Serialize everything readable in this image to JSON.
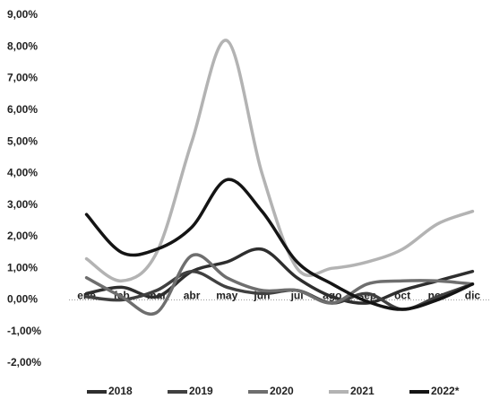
{
  "chart_data": {
    "type": "line",
    "categories": [
      "ene",
      "feb",
      "mar",
      "abr",
      "may",
      "jun",
      "jul",
      "ago",
      "sep",
      "oct",
      "nov",
      "dic"
    ],
    "series": [
      {
        "name": "2018",
        "color": "#2e2e2e",
        "values": [
          0.2,
          0.4,
          0.1,
          0.9,
          1.2,
          1.6,
          0.7,
          0.1,
          -0.1,
          0.3,
          0.6,
          0.9
        ]
      },
      {
        "name": "2019",
        "color": "#404040",
        "values": [
          0.1,
          0.0,
          0.3,
          0.9,
          0.4,
          0.2,
          0.3,
          -0.1,
          0.2,
          -0.3,
          0.1,
          0.5
        ]
      },
      {
        "name": "2020",
        "color": "#6e6e6e",
        "values": [
          0.7,
          0.1,
          -0.4,
          1.4,
          0.7,
          0.3,
          0.3,
          -0.1,
          0.5,
          0.6,
          0.6,
          0.5
        ]
      },
      {
        "name": "2021",
        "color": "#b3b3b3",
        "values": [
          1.3,
          0.6,
          1.5,
          5.0,
          8.2,
          4.0,
          1.0,
          1.0,
          1.2,
          1.6,
          2.4,
          2.8
        ]
      },
      {
        "name": "2022*",
        "color": "#141414",
        "values": [
          2.7,
          1.5,
          1.6,
          2.3,
          3.8,
          2.8,
          1.2,
          0.5,
          -0.05,
          -0.3,
          0.0,
          0.5
        ]
      }
    ],
    "ylim": [
      -2,
      9
    ],
    "yticks": [
      {
        "value": -2,
        "label": "-2,00%"
      },
      {
        "value": -1,
        "label": "-1,00%"
      },
      {
        "value": 0,
        "label": "0,00%"
      },
      {
        "value": 1,
        "label": "1,00%"
      },
      {
        "value": 2,
        "label": "2,00%"
      },
      {
        "value": 3,
        "label": "3,00%"
      },
      {
        "value": 4,
        "label": "4,00%"
      },
      {
        "value": 5,
        "label": "5,00%"
      },
      {
        "value": 6,
        "label": "6,00%"
      },
      {
        "value": 7,
        "label": "7,00%"
      },
      {
        "value": 8,
        "label": "8,00%"
      },
      {
        "value": 9,
        "label": "9,00%"
      }
    ],
    "grid": false
  }
}
